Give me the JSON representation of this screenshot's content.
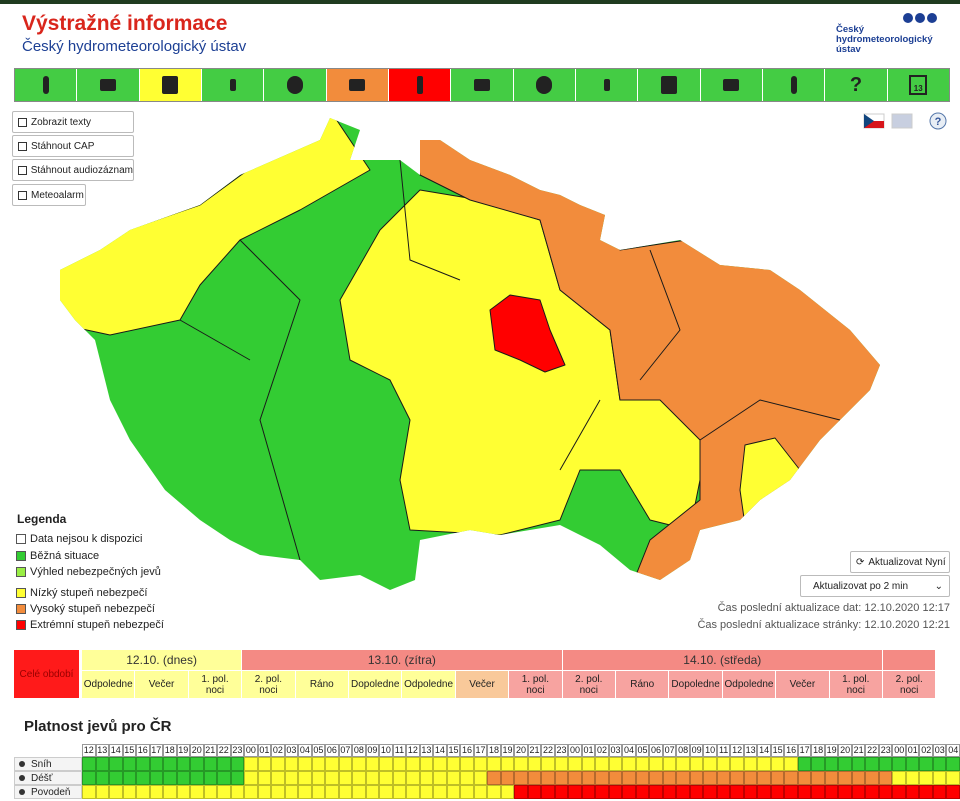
{
  "header": {
    "title": "Výstražné informace",
    "subtitle": "Český hydrometeorologický ústav",
    "logo": "Český hydrometeorologický ústav"
  },
  "toolbar": {
    "colors": [
      "#44cc44",
      "#44cc44",
      "#ffff33",
      "#44cc44",
      "#44cc44",
      "#f28c3c",
      "#ff0000",
      "#44cc44",
      "#44cc44",
      "#44cc44",
      "#44cc44",
      "#44cc44",
      "#44cc44",
      "#44cc44",
      "#44cc44"
    ],
    "help": "?",
    "calendar": "13"
  },
  "buttons": [
    "Zobrazit texty",
    "Stáhnout CAP",
    "Stáhnout audiozáznam",
    "Meteoalarm"
  ],
  "legend": {
    "title": "Legenda",
    "items": [
      {
        "label": "Data nejsou k dispozici",
        "color": "#ffffff"
      },
      {
        "label": "Běžná situace",
        "color": "#33cc33"
      },
      {
        "label": "Výhled nebezpečných jevů",
        "color": "#99ee44"
      },
      {
        "label": "Nízký stupeň nebezpečí",
        "color": "#ffff33"
      },
      {
        "label": "Vysoký stupeň nebezpečí",
        "color": "#f28c3c"
      },
      {
        "label": "Extrémní stupeň nebezpečí",
        "color": "#ff0000"
      }
    ]
  },
  "controls": {
    "refresh": "Aktualizovat Nyní",
    "interval": "Aktualizovat po 2 min",
    "data_update": "Čas poslední aktualizace dat: 12.10.2020 12:17",
    "page_update": "Čas poslední aktualizace stránky: 12.10.2020 12:21"
  },
  "timeline": {
    "whole": "Celé období",
    "whole_color": "#ff1a1a",
    "days": [
      {
        "label": "12.10. (dnes)",
        "color": "#ffff99",
        "periods": [
          {
            "label": "Odpoledne",
            "color": "#ffff99"
          },
          {
            "label": "Večer",
            "color": "#ffff99"
          },
          {
            "label": "1. pol. noci",
            "color": "#ffff99"
          }
        ]
      },
      {
        "label": "13.10. (zítra)",
        "color": "#f48a84",
        "periods": [
          {
            "label": "2. pol. noci",
            "color": "#ffff99"
          },
          {
            "label": "Ráno",
            "color": "#ffff99"
          },
          {
            "label": "Dopoledne",
            "color": "#ffff99"
          },
          {
            "label": "Odpoledne",
            "color": "#ffff99"
          },
          {
            "label": "Večer",
            "color": "#f9c99a"
          },
          {
            "label": "1. pol. noci",
            "color": "#f7a3a0"
          }
        ]
      },
      {
        "label": "14.10. (středa)",
        "color": "#f48a84",
        "periods": [
          {
            "label": "2. pol. noci",
            "color": "#f7a3a0"
          },
          {
            "label": "Ráno",
            "color": "#f7a3a0"
          },
          {
            "label": "Dopoledne",
            "color": "#f7a3a0"
          },
          {
            "label": "Odpoledne",
            "color": "#f7a3a0"
          },
          {
            "label": "Večer",
            "color": "#f7a3a0"
          },
          {
            "label": "1. pol. noci",
            "color": "#f7a3a0"
          }
        ]
      },
      {
        "color": "#f48a84",
        "periods": [
          {
            "label": "2. pol. noci",
            "color": "#f7a3a0"
          }
        ]
      }
    ]
  },
  "validity": {
    "title": "Platnost jevů pro ČR",
    "hours": [
      "12",
      "13",
      "14",
      "15",
      "16",
      "17",
      "18",
      "19",
      "20",
      "21",
      "22",
      "23",
      "00",
      "01",
      "02",
      "03",
      "04",
      "05",
      "06",
      "07",
      "08",
      "09",
      "10",
      "11",
      "12",
      "13",
      "14",
      "15",
      "16",
      "17",
      "18",
      "19",
      "20",
      "21",
      "22",
      "23",
      "00",
      "01",
      "02",
      "03",
      "04",
      "05",
      "06",
      "07",
      "08",
      "09",
      "10",
      "11",
      "12",
      "13",
      "14",
      "15",
      "16",
      "17",
      "18",
      "19",
      "20",
      "21",
      "22",
      "23",
      "00",
      "01",
      "02",
      "03",
      "04"
    ],
    "rows": [
      {
        "label": "Sníh",
        "cells": [
          "#33cc33",
          "#33cc33",
          "#33cc33",
          "#33cc33",
          "#33cc33",
          "#33cc33",
          "#33cc33",
          "#33cc33",
          "#33cc33",
          "#33cc33",
          "#33cc33",
          "#33cc33",
          "#ffff33",
          "#ffff33",
          "#ffff33",
          "#ffff33",
          "#ffff33",
          "#ffff33",
          "#ffff33",
          "#ffff33",
          "#ffff33",
          "#ffff33",
          "#ffff33",
          "#ffff33",
          "#ffff33",
          "#ffff33",
          "#ffff33",
          "#ffff33",
          "#ffff33",
          "#ffff33",
          "#ffff33",
          "#ffff33",
          "#ffff33",
          "#ffff33",
          "#ffff33",
          "#ffff33",
          "#ffff33",
          "#ffff33",
          "#ffff33",
          "#ffff33",
          "#ffff33",
          "#ffff33",
          "#ffff33",
          "#ffff33",
          "#ffff33",
          "#ffff33",
          "#ffff33",
          "#ffff33",
          "#ffff33",
          "#ffff33",
          "#ffff33",
          "#ffff33",
          "#ffff33",
          "#33cc33",
          "#33cc33",
          "#33cc33",
          "#33cc33",
          "#33cc33",
          "#33cc33",
          "#33cc33",
          "#33cc33",
          "#33cc33",
          "#33cc33",
          "#33cc33",
          "#33cc33"
        ]
      },
      {
        "label": "Déšť",
        "cells": [
          "#33cc33",
          "#33cc33",
          "#33cc33",
          "#33cc33",
          "#33cc33",
          "#33cc33",
          "#33cc33",
          "#33cc33",
          "#33cc33",
          "#33cc33",
          "#33cc33",
          "#33cc33",
          "#ffff33",
          "#ffff33",
          "#ffff33",
          "#ffff33",
          "#ffff33",
          "#ffff33",
          "#ffff33",
          "#ffff33",
          "#ffff33",
          "#ffff33",
          "#ffff33",
          "#ffff33",
          "#ffff33",
          "#ffff33",
          "#ffff33",
          "#ffff33",
          "#ffff33",
          "#ffff33",
          "#f28c3c",
          "#f28c3c",
          "#f28c3c",
          "#f28c3c",
          "#f28c3c",
          "#f28c3c",
          "#f28c3c",
          "#f28c3c",
          "#f28c3c",
          "#f28c3c",
          "#f28c3c",
          "#f28c3c",
          "#f28c3c",
          "#f28c3c",
          "#f28c3c",
          "#f28c3c",
          "#f28c3c",
          "#f28c3c",
          "#f28c3c",
          "#f28c3c",
          "#f28c3c",
          "#f28c3c",
          "#f28c3c",
          "#f28c3c",
          "#f28c3c",
          "#f28c3c",
          "#f28c3c",
          "#f28c3c",
          "#f28c3c",
          "#f28c3c",
          "#ffff33",
          "#ffff33",
          "#ffff33",
          "#ffff33",
          "#ffff33"
        ]
      },
      {
        "label": "Povodeň",
        "cells": [
          "#ffff33",
          "#ffff33",
          "#ffff33",
          "#ffff33",
          "#ffff33",
          "#ffff33",
          "#ffff33",
          "#ffff33",
          "#ffff33",
          "#ffff33",
          "#ffff33",
          "#ffff33",
          "#ffff33",
          "#ffff33",
          "#ffff33",
          "#ffff33",
          "#ffff33",
          "#ffff33",
          "#ffff33",
          "#ffff33",
          "#ffff33",
          "#ffff33",
          "#ffff33",
          "#ffff33",
          "#ffff33",
          "#ffff33",
          "#ffff33",
          "#ffff33",
          "#ffff33",
          "#ffff33",
          "#ffff33",
          "#ffff33",
          "#ff0000",
          "#ff0000",
          "#ff0000",
          "#ff0000",
          "#ff0000",
          "#ff0000",
          "#ff0000",
          "#ff0000",
          "#ff0000",
          "#ff0000",
          "#ff0000",
          "#ff0000",
          "#ff0000",
          "#ff0000",
          "#ff0000",
          "#ff0000",
          "#ff0000",
          "#ff0000",
          "#ff0000",
          "#ff0000",
          "#ff0000",
          "#ff0000",
          "#ff0000",
          "#ff0000",
          "#ff0000",
          "#ff0000",
          "#ff0000",
          "#ff0000",
          "#ff0000",
          "#ff0000",
          "#ff0000",
          "#ff0000",
          "#ff0000"
        ]
      }
    ]
  }
}
